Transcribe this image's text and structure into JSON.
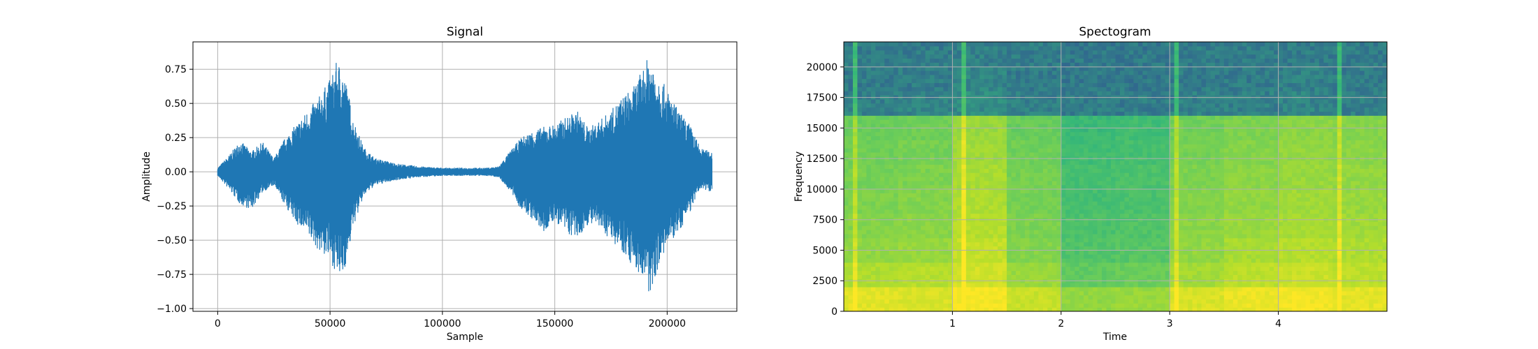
{
  "chart_data": [
    {
      "type": "line",
      "title": "Signal",
      "xlabel": "Sample",
      "ylabel": "Amplitude",
      "xlim": [
        -11000,
        231000
      ],
      "ylim": [
        -1.02,
        0.95
      ],
      "grid": true,
      "color": "#1f77b4",
      "x_ticks": [
        0,
        50000,
        100000,
        150000,
        200000
      ],
      "x_tick_labels": [
        "0",
        "50000",
        "100000",
        "150000",
        "200000"
      ],
      "y_ticks": [
        0.75,
        0.5,
        0.25,
        0.0,
        -0.25,
        -0.5,
        -0.75,
        -1.0
      ],
      "y_tick_labels": [
        "0.75",
        "0.50",
        "0.25",
        "0.00",
        "−0.25",
        "−0.50",
        "−0.75",
        "−1.00"
      ],
      "series": [
        {
          "x": [
            0,
            5000,
            10000,
            15000,
            20000,
            25000,
            30000,
            35000,
            40000,
            45000,
            50000,
            53000,
            55000,
            58000,
            60000,
            65000,
            70000,
            75000,
            80000,
            90000,
            100000,
            110000,
            120000,
            125000,
            130000,
            135000,
            140000,
            145000,
            150000,
            155000,
            160000,
            165000,
            170000,
            175000,
            180000,
            185000,
            190000,
            192000,
            195000,
            200000,
            205000,
            210000,
            215000,
            220000
          ],
          "upper": [
            0.03,
            0.12,
            0.23,
            0.15,
            0.22,
            0.1,
            0.25,
            0.35,
            0.45,
            0.55,
            0.68,
            0.81,
            0.78,
            0.6,
            0.4,
            0.18,
            0.1,
            0.08,
            0.06,
            0.04,
            0.03,
            0.03,
            0.03,
            0.04,
            0.15,
            0.25,
            0.3,
            0.33,
            0.35,
            0.4,
            0.45,
            0.32,
            0.38,
            0.45,
            0.55,
            0.62,
            0.78,
            0.86,
            0.75,
            0.6,
            0.45,
            0.35,
            0.17,
            0.15
          ],
          "lower": [
            -0.03,
            -0.13,
            -0.24,
            -0.28,
            -0.15,
            -0.1,
            -0.25,
            -0.38,
            -0.47,
            -0.58,
            -0.65,
            -0.75,
            -0.8,
            -0.62,
            -0.42,
            -0.18,
            -0.1,
            -0.08,
            -0.06,
            -0.04,
            -0.03,
            -0.03,
            -0.03,
            -0.04,
            -0.14,
            -0.28,
            -0.35,
            -0.45,
            -0.36,
            -0.45,
            -0.5,
            -0.38,
            -0.42,
            -0.5,
            -0.58,
            -0.7,
            -0.8,
            -0.93,
            -0.75,
            -0.55,
            -0.45,
            -0.3,
            -0.12,
            -0.15
          ]
        }
      ]
    },
    {
      "type": "heatmap",
      "title": "Spectogram",
      "xlabel": "Time",
      "ylabel": "Frequency",
      "xlim": [
        0,
        5
      ],
      "ylim": [
        0,
        22050
      ],
      "grid": true,
      "x_ticks": [
        1,
        2,
        3,
        4
      ],
      "x_tick_labels": [
        "1",
        "2",
        "3",
        "4"
      ],
      "y_ticks": [
        0,
        2500,
        5000,
        7500,
        10000,
        12500,
        15000,
        17500,
        20000
      ],
      "y_tick_labels": [
        "0",
        "2500",
        "5000",
        "7500",
        "10000",
        "12500",
        "15000",
        "17500",
        "20000"
      ],
      "colormap": [
        "#440154",
        "#31688e",
        "#35b779",
        "#6ece58",
        "#b5de2b",
        "#fde725"
      ],
      "time_axis": [
        0.25,
        0.75,
        1.25,
        1.75,
        2.25,
        2.75,
        3.25,
        3.75,
        4.25,
        4.75
      ],
      "freq_axis": [
        1000,
        3000,
        5000,
        7000,
        9000,
        11000,
        13000,
        15000,
        17000,
        19000,
        21000
      ],
      "intensity": [
        [
          0.92,
          0.9,
          0.98,
          0.85,
          0.7,
          0.72,
          0.9,
          0.95,
          0.97,
          0.93
        ],
        [
          0.78,
          0.8,
          0.88,
          0.72,
          0.55,
          0.58,
          0.75,
          0.82,
          0.86,
          0.82
        ],
        [
          0.7,
          0.72,
          0.84,
          0.66,
          0.5,
          0.52,
          0.7,
          0.76,
          0.8,
          0.78
        ],
        [
          0.66,
          0.68,
          0.8,
          0.64,
          0.48,
          0.5,
          0.68,
          0.72,
          0.76,
          0.74
        ],
        [
          0.64,
          0.66,
          0.78,
          0.62,
          0.46,
          0.48,
          0.66,
          0.7,
          0.74,
          0.72
        ],
        [
          0.62,
          0.64,
          0.76,
          0.62,
          0.46,
          0.48,
          0.64,
          0.68,
          0.72,
          0.7
        ],
        [
          0.6,
          0.62,
          0.74,
          0.6,
          0.44,
          0.46,
          0.62,
          0.66,
          0.7,
          0.68
        ],
        [
          0.58,
          0.6,
          0.72,
          0.58,
          0.42,
          0.44,
          0.6,
          0.64,
          0.68,
          0.66
        ],
        [
          0.26,
          0.27,
          0.29,
          0.26,
          0.25,
          0.25,
          0.26,
          0.26,
          0.27,
          0.26
        ],
        [
          0.25,
          0.25,
          0.27,
          0.25,
          0.24,
          0.24,
          0.25,
          0.25,
          0.26,
          0.25
        ],
        [
          0.25,
          0.25,
          0.26,
          0.25,
          0.24,
          0.24,
          0.25,
          0.25,
          0.25,
          0.25
        ]
      ],
      "transient_times": [
        0.1,
        1.1,
        3.05,
        4.55
      ]
    }
  ]
}
